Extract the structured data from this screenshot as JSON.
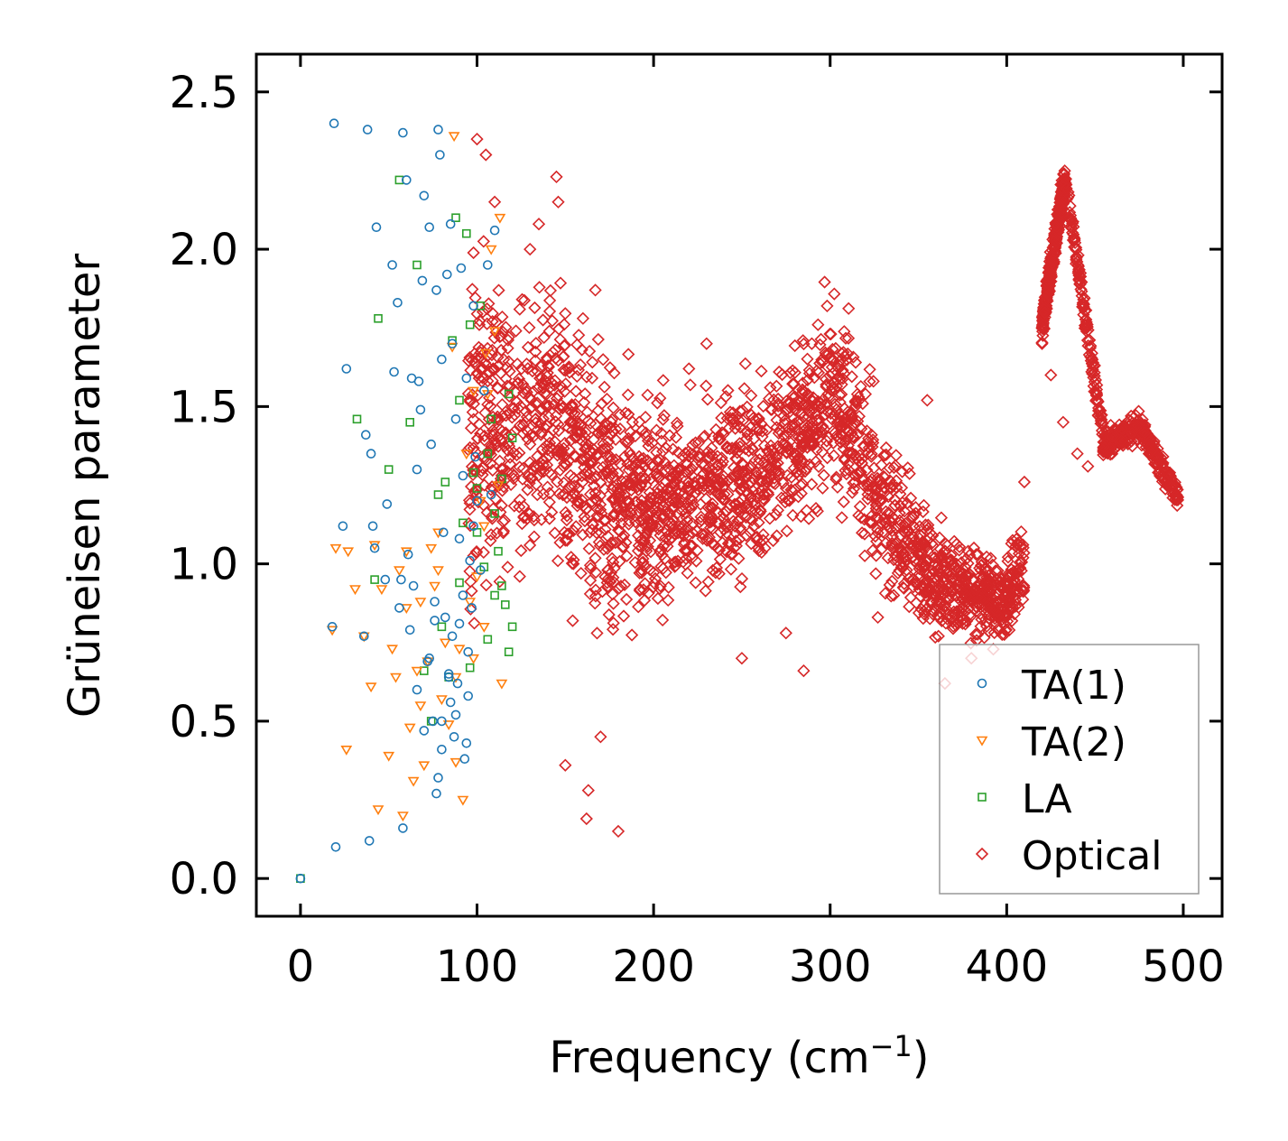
{
  "chart_data": {
    "type": "scatter",
    "title": "",
    "xlabel": "Frequency (cm",
    "xlabel_sup": "−1",
    "xlabel_close": ")",
    "ylabel": "Grüneisen parameter",
    "xlim": [
      -25,
      522
    ],
    "ylim": [
      -0.12,
      2.62
    ],
    "xticks": [
      0,
      100,
      200,
      300,
      400,
      500
    ],
    "yticks": [
      0.0,
      0.5,
      1.0,
      1.5,
      2.0,
      2.5
    ],
    "xtick_labels": [
      "0",
      "100",
      "200",
      "300",
      "400",
      "500"
    ],
    "ytick_labels": [
      "0.0",
      "0.5",
      "1.0",
      "1.5",
      "2.0",
      "2.5"
    ],
    "legend_position": "bottom-right",
    "series": [
      {
        "name": "TA(1)",
        "marker": "circle",
        "color": "#1f77b4",
        "points": [
          [
            0,
            0.0
          ],
          [
            18,
            0.8
          ],
          [
            19,
            2.4
          ],
          [
            20,
            0.1
          ],
          [
            24,
            1.12
          ],
          [
            26,
            1.62
          ],
          [
            36,
            0.77
          ],
          [
            37,
            1.41
          ],
          [
            38,
            2.38
          ],
          [
            39,
            0.12
          ],
          [
            40,
            1.35
          ],
          [
            41,
            1.12
          ],
          [
            42,
            1.05
          ],
          [
            43,
            2.07
          ],
          [
            48,
            0.95
          ],
          [
            49,
            1.19
          ],
          [
            52,
            1.95
          ],
          [
            53,
            1.61
          ],
          [
            55,
            1.83
          ],
          [
            56,
            0.86
          ],
          [
            57,
            0.95
          ],
          [
            58,
            2.37
          ],
          [
            58,
            0.16
          ],
          [
            60,
            2.22
          ],
          [
            61,
            1.03
          ],
          [
            62,
            0.79
          ],
          [
            63,
            1.59
          ],
          [
            64,
            0.93
          ],
          [
            66,
            1.3
          ],
          [
            67,
            1.58
          ],
          [
            68,
            1.49
          ],
          [
            69,
            1.9
          ],
          [
            70,
            2.17
          ],
          [
            72,
            0.69
          ],
          [
            73,
            2.07
          ],
          [
            74,
            1.38
          ],
          [
            75,
            0.5
          ],
          [
            76,
            0.88
          ],
          [
            77,
            0.27
          ],
          [
            77,
            1.87
          ],
          [
            78,
            2.38
          ],
          [
            78,
            0.32
          ],
          [
            79,
            2.3
          ],
          [
            80,
            0.41
          ],
          [
            80,
            1.65
          ],
          [
            81,
            1.1
          ],
          [
            82,
            0.83
          ],
          [
            83,
            1.92
          ],
          [
            84,
            0.65
          ],
          [
            85,
            2.08
          ],
          [
            85,
            0.56
          ],
          [
            86,
            1.7
          ],
          [
            87,
            0.45
          ],
          [
            88,
            1.46
          ],
          [
            89,
            0.62
          ],
          [
            90,
            1.08
          ],
          [
            91,
            1.94
          ],
          [
            92,
            1.28
          ],
          [
            93,
            0.38
          ],
          [
            94,
            0.43
          ],
          [
            94,
            1.59
          ],
          [
            95,
            0.72
          ],
          [
            96,
            1.01
          ],
          [
            97,
            0.86
          ],
          [
            98,
            1.82
          ],
          [
            99,
            1.34
          ],
          [
            100,
            1.2
          ],
          [
            102,
            0.98
          ],
          [
            104,
            1.55
          ],
          [
            106,
            1.95
          ],
          [
            108,
            1.22
          ],
          [
            110,
            2.06
          ],
          [
            76,
            0.82
          ],
          [
            86,
            0.77
          ],
          [
            88,
            0.52
          ],
          [
            92,
            0.9
          ],
          [
            95,
            0.58
          ],
          [
            98,
            1.12
          ],
          [
            80,
            0.5
          ],
          [
            70,
            0.47
          ],
          [
            66,
            0.6
          ],
          [
            73,
            0.7
          ],
          [
            84,
            0.64
          ],
          [
            90,
            0.81
          ]
        ]
      },
      {
        "name": "TA(2)",
        "marker": "triangle-down",
        "color": "#ff7f0e",
        "points": [
          [
            18,
            0.79
          ],
          [
            20,
            1.05
          ],
          [
            26,
            0.41
          ],
          [
            27,
            1.04
          ],
          [
            31,
            0.92
          ],
          [
            36,
            0.77
          ],
          [
            40,
            0.61
          ],
          [
            42,
            1.06
          ],
          [
            44,
            0.22
          ],
          [
            46,
            0.92
          ],
          [
            50,
            0.39
          ],
          [
            52,
            0.73
          ],
          [
            54,
            0.64
          ],
          [
            56,
            0.98
          ],
          [
            58,
            0.2
          ],
          [
            60,
            0.86
          ],
          [
            62,
            0.48
          ],
          [
            64,
            0.31
          ],
          [
            66,
            0.66
          ],
          [
            68,
            0.88
          ],
          [
            70,
            0.36
          ],
          [
            72,
            0.69
          ],
          [
            74,
            1.05
          ],
          [
            76,
            0.93
          ],
          [
            78,
            1.1
          ],
          [
            80,
            0.57
          ],
          [
            82,
            0.75
          ],
          [
            84,
            0.49
          ],
          [
            86,
            1.69
          ],
          [
            87,
            2.36
          ],
          [
            88,
            0.37
          ],
          [
            90,
            0.73
          ],
          [
            92,
            0.25
          ],
          [
            94,
            1.35
          ],
          [
            96,
            0.88
          ],
          [
            98,
            1.55
          ],
          [
            100,
            0.96
          ],
          [
            102,
            1.2
          ],
          [
            104,
            0.8
          ],
          [
            105,
            1.67
          ],
          [
            106,
            1.54
          ],
          [
            108,
            2.0
          ],
          [
            110,
            1.74
          ],
          [
            112,
            1.25
          ],
          [
            113,
            2.1
          ],
          [
            114,
            0.62
          ],
          [
            60,
            1.04
          ],
          [
            68,
            0.55
          ],
          [
            78,
            0.98
          ],
          [
            88,
            0.64
          ],
          [
            98,
            0.7
          ],
          [
            104,
            1.12
          ]
        ]
      },
      {
        "name": "LA",
        "marker": "square",
        "color": "#2ca02c",
        "points": [
          [
            0,
            0.0
          ],
          [
            32,
            1.46
          ],
          [
            42,
            0.95
          ],
          [
            44,
            1.78
          ],
          [
            50,
            1.3
          ],
          [
            56,
            2.22
          ],
          [
            62,
            1.45
          ],
          [
            66,
            1.95
          ],
          [
            70,
            0.66
          ],
          [
            74,
            0.5
          ],
          [
            78,
            1.22
          ],
          [
            80,
            0.8
          ],
          [
            82,
            1.26
          ],
          [
            84,
            0.64
          ],
          [
            86,
            1.71
          ],
          [
            88,
            2.1
          ],
          [
            90,
            1.52
          ],
          [
            92,
            1.13
          ],
          [
            94,
            2.05
          ],
          [
            96,
            1.76
          ],
          [
            98,
            1.29
          ],
          [
            100,
            1.24
          ],
          [
            102,
            1.82
          ],
          [
            104,
            0.99
          ],
          [
            106,
            1.35
          ],
          [
            108,
            1.46
          ],
          [
            110,
            0.9
          ],
          [
            112,
            1.04
          ],
          [
            114,
            1.27
          ],
          [
            116,
            0.87
          ],
          [
            118,
            1.54
          ],
          [
            120,
            1.4
          ],
          [
            120,
            0.8
          ],
          [
            90,
            0.94
          ],
          [
            96,
            0.67
          ],
          [
            100,
            1.1
          ],
          [
            106,
            0.76
          ],
          [
            110,
            1.16
          ],
          [
            114,
            0.93
          ],
          [
            118,
            0.72
          ]
        ]
      },
      {
        "name": "Optical",
        "marker": "diamond",
        "color": "#d62728",
        "generated": true
      }
    ]
  }
}
